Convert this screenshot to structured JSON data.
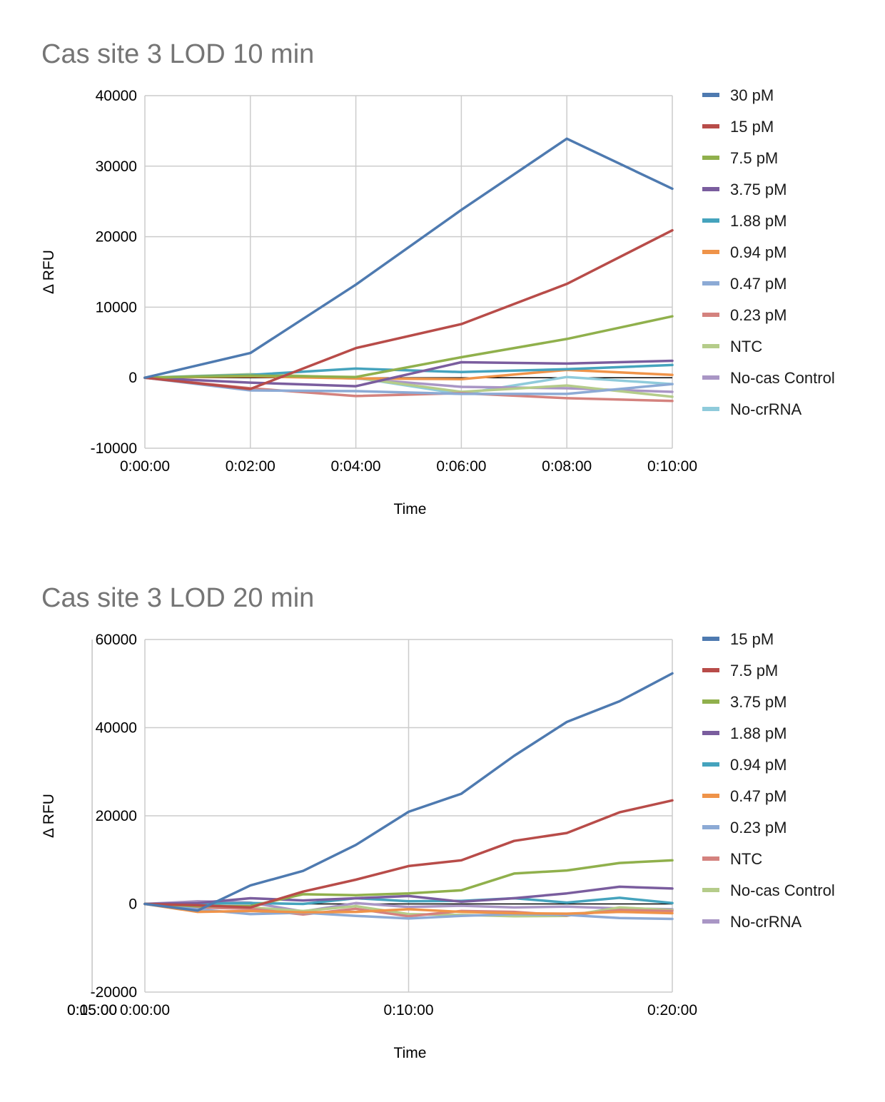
{
  "chart_data": [
    {
      "type": "line",
      "title": "Cas site 3 LOD 10 min",
      "xlabel": "Time",
      "ylabel": "Δ RFU",
      "x": [
        "0:00:00",
        "0:02:00",
        "0:04:00",
        "0:06:00",
        "0:08:00",
        "0:10:00"
      ],
      "ylim": [
        -10000,
        40000
      ],
      "yticks": [
        -10000,
        0,
        10000,
        20000,
        30000,
        40000
      ],
      "grid": true,
      "legend_position": "right",
      "series": [
        {
          "name": "30 pM",
          "color": "#4e7ab0",
          "values": [
            0,
            3500,
            13200,
            23800,
            33900,
            26800
          ]
        },
        {
          "name": "15 pM",
          "color": "#b84c49",
          "values": [
            0,
            -1600,
            4200,
            7600,
            13300,
            20900
          ]
        },
        {
          "name": "7.5 pM",
          "color": "#90b04c",
          "values": [
            0,
            300,
            100,
            2900,
            5500,
            8700
          ]
        },
        {
          "name": "3.75 pM",
          "color": "#7a5d9e",
          "values": [
            0,
            -700,
            -1200,
            2200,
            2000,
            2400
          ]
        },
        {
          "name": "1.88 pM",
          "color": "#45a3bd",
          "values": [
            0,
            400,
            1300,
            800,
            1200,
            1800
          ]
        },
        {
          "name": "0.94 pM",
          "color": "#ef9349",
          "values": [
            0,
            200,
            -100,
            -200,
            1100,
            400
          ]
        },
        {
          "name": "0.47 pM",
          "color": "#8caad5",
          "values": [
            0,
            -1800,
            -1900,
            -2300,
            -2300,
            -900
          ]
        },
        {
          "name": "0.23 pM",
          "color": "#d4827e",
          "values": [
            0,
            -1500,
            -2600,
            -2200,
            -2900,
            -3300
          ]
        },
        {
          "name": "NTC",
          "color": "#b5cc8a",
          "values": [
            0,
            500,
            0,
            -2000,
            -1100,
            -2700
          ]
        },
        {
          "name": "No-cas Control",
          "color": "#a996c5",
          "values": [
            0,
            300,
            -100,
            -1300,
            -1500,
            -2000
          ]
        },
        {
          "name": "No-crRNA",
          "color": "#8fcbdb",
          "values": [
            0,
            400,
            0,
            -2300,
            100,
            -900
          ]
        }
      ]
    },
    {
      "type": "line",
      "title": "Cas site 3 LOD 20 min",
      "xlabel": "Time",
      "ylabel": "Δ RFU",
      "x": [
        "0:00:00",
        "0:02:00",
        "0:04:00",
        "0:06:00",
        "0:08:00",
        "0:10:00",
        "0:12:00",
        "0:14:00",
        "0:16:00",
        "0:18:00",
        "0:20:00"
      ],
      "xticks": [
        "0:00:00",
        "0:05:00",
        "0:10:00",
        "0:15:00",
        "0:20:00"
      ],
      "ylim": [
        -20000,
        60000
      ],
      "yticks": [
        -20000,
        0,
        20000,
        40000,
        60000
      ],
      "grid": true,
      "legend_position": "right",
      "series": [
        {
          "name": "15 pM",
          "color": "#4e7ab0",
          "values": [
            0,
            -1500,
            4200,
            7500,
            13400,
            20900,
            25000,
            33600,
            41300,
            46000,
            52300
          ]
        },
        {
          "name": "7.5 pM",
          "color": "#b84c49",
          "values": [
            0,
            -300,
            -800,
            2800,
            5500,
            8600,
            9900,
            14300,
            16100,
            20800,
            23500
          ]
        },
        {
          "name": "3.75 pM",
          "color": "#90b04c",
          "values": [
            0,
            -500,
            -500,
            2200,
            2000,
            2400,
            3100,
            6900,
            7600,
            9300,
            9900
          ]
        },
        {
          "name": "1.88 pM",
          "color": "#7a5d9e",
          "values": [
            0,
            200,
            1300,
            800,
            1300,
            1800,
            500,
            1300,
            2400,
            3900,
            3500
          ]
        },
        {
          "name": "0.94 pM",
          "color": "#45a3bd",
          "values": [
            0,
            100,
            200,
            0,
            1300,
            600,
            700,
            1300,
            300,
            1400,
            200
          ]
        },
        {
          "name": "0.47 pM",
          "color": "#ef9349",
          "values": [
            0,
            -1800,
            -1600,
            -1900,
            -1800,
            -1200,
            -1800,
            -2100,
            -2200,
            -1800,
            -2100
          ]
        },
        {
          "name": "0.23 pM",
          "color": "#8caad5",
          "values": [
            0,
            -1200,
            -2300,
            -2000,
            -2700,
            -3300,
            -2700,
            -2300,
            -2500,
            -3200,
            -3400
          ]
        },
        {
          "name": "NTC",
          "color": "#d4827e",
          "values": [
            0,
            -800,
            -1100,
            -2400,
            -1100,
            -2800,
            -1600,
            -1800,
            -2600,
            -1400,
            -1600
          ]
        },
        {
          "name": "No-cas Control",
          "color": "#b5cc8a",
          "values": [
            0,
            -200,
            -800,
            -1600,
            -500,
            -2300,
            -2500,
            -2800,
            -2700,
            -800,
            -1400
          ]
        },
        {
          "name": "No-crRNA",
          "color": "#a996c5",
          "values": [
            0,
            600,
            300,
            -1700,
            200,
            -700,
            -400,
            -800,
            -600,
            -1000,
            -1200
          ]
        }
      ]
    }
  ]
}
